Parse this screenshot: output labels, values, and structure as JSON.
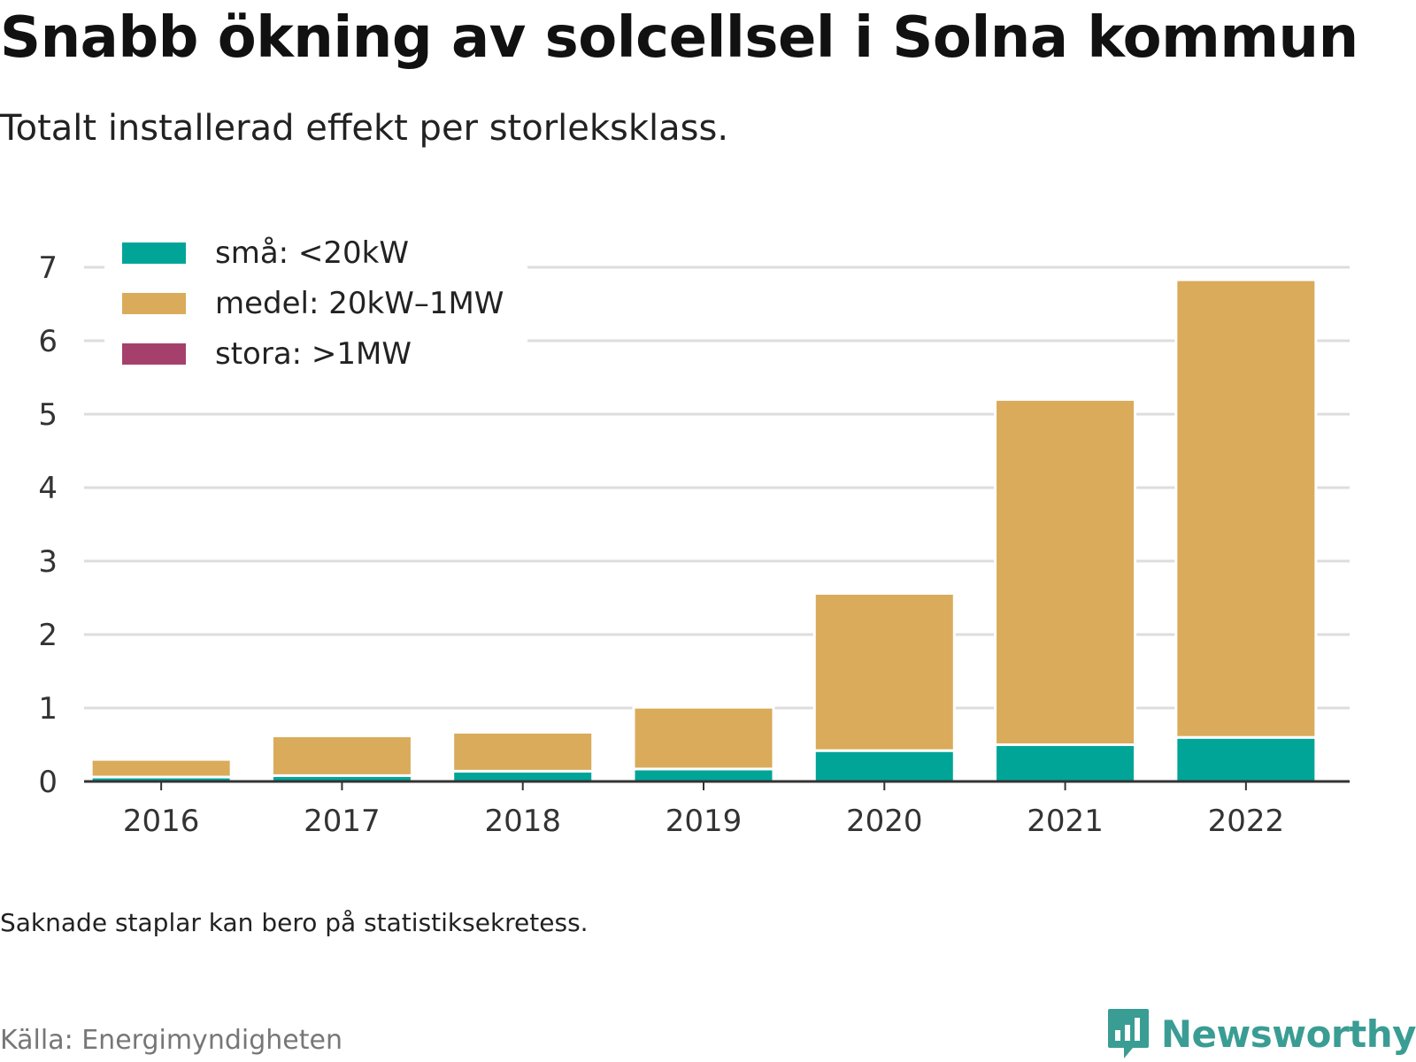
{
  "title": "Snabb ökning av solcellsel i Solna kommun",
  "subtitle": "Totalt installerad effekt per storleksklass.",
  "note": "Saknade staplar kan bero på statistiksekretess.",
  "source": "Källa: Energimyndigheten",
  "brand": "Newsworthy",
  "chart_data": {
    "type": "bar",
    "stacked": true,
    "title": "",
    "xlabel": "",
    "ylabel": "",
    "categories": [
      "2016",
      "2017",
      "2018",
      "2019",
      "2020",
      "2021",
      "2022"
    ],
    "series": [
      {
        "name": "små: <20kW",
        "color": "#00a598",
        "values": [
          0.06,
          0.08,
          0.14,
          0.17,
          0.42,
          0.5,
          0.6
        ]
      },
      {
        "name": "medel: 20kW–1MW",
        "color": "#d9ab5a",
        "values": [
          0.24,
          0.54,
          0.53,
          0.84,
          2.14,
          4.7,
          6.23
        ]
      },
      {
        "name": "stora: >1MW",
        "color": "#a5406c",
        "values": [
          0,
          0,
          0,
          0,
          0,
          0,
          0
        ]
      }
    ],
    "ylim": [
      0,
      7
    ],
    "yticks": [
      "0",
      "1",
      "2",
      "3",
      "4",
      "5",
      "6",
      "7"
    ],
    "grid": true,
    "legend_position": "top-left"
  }
}
